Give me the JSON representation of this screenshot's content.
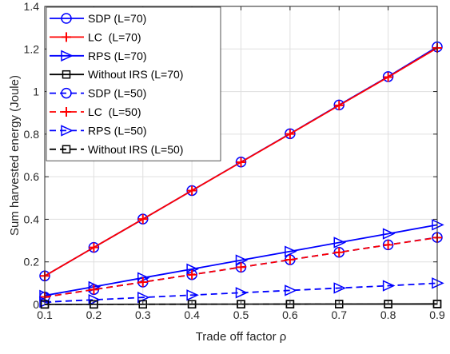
{
  "chart_data": {
    "type": "line",
    "xlabel": "Trade off factor ρ",
    "ylabel": "Sum harvested energy (Joule)",
    "xlim": [
      0.1,
      0.9
    ],
    "ylim": [
      0,
      1.4
    ],
    "xticks": [
      "0.1",
      "0.2",
      "0.3",
      "0.4",
      "0.5",
      "0.6",
      "0.7",
      "0.8",
      "0.9"
    ],
    "yticks": [
      "0",
      "0.2",
      "0.4",
      "0.6",
      "0.8",
      "1",
      "1.2",
      "1.4"
    ],
    "grid": true,
    "legend_position": "top-left",
    "x": [
      0.1,
      0.2,
      0.3,
      0.4,
      0.5,
      0.6,
      0.7,
      0.8,
      0.9
    ],
    "series": [
      {
        "name": "SDP (L=70)",
        "color": "#0000ff",
        "style": "solid",
        "marker": "circle",
        "values": [
          0.134,
          0.268,
          0.401,
          0.535,
          0.669,
          0.802,
          0.937,
          1.07,
          1.21
        ]
      },
      {
        "name": "LC  (L=70)",
        "color": "#ff0000",
        "style": "solid",
        "marker": "plus",
        "values": [
          0.134,
          0.268,
          0.401,
          0.535,
          0.668,
          0.801,
          0.935,
          1.068,
          1.205
        ]
      },
      {
        "name": "RPS (L=70)",
        "color": "#0000ff",
        "style": "solid",
        "marker": "triangle-right",
        "values": [
          0.042,
          0.083,
          0.125,
          0.166,
          0.208,
          0.249,
          0.291,
          0.332,
          0.374
        ]
      },
      {
        "name": "Without IRS (L=70)",
        "color": "#000000",
        "style": "solid",
        "marker": "square",
        "values": [
          0.0003,
          0.0005,
          0.0008,
          0.0011,
          0.0014,
          0.0016,
          0.0019,
          0.0022,
          0.0025
        ]
      },
      {
        "name": "SDP (L=50)",
        "color": "#0000ff",
        "style": "dashed",
        "marker": "circle",
        "values": [
          0.035,
          0.07,
          0.105,
          0.14,
          0.175,
          0.21,
          0.245,
          0.28,
          0.315
        ]
      },
      {
        "name": "LC  (L=50)",
        "color": "#ff0000",
        "style": "dashed",
        "marker": "plus",
        "values": [
          0.035,
          0.07,
          0.105,
          0.14,
          0.175,
          0.21,
          0.245,
          0.28,
          0.314
        ]
      },
      {
        "name": "RPS (L=50)",
        "color": "#0000ff",
        "style": "dashed",
        "marker": "triangle-right",
        "values": [
          0.011,
          0.022,
          0.033,
          0.044,
          0.055,
          0.066,
          0.077,
          0.088,
          0.1
        ]
      },
      {
        "name": "Without IRS (L=50)",
        "color": "#000000",
        "style": "dashed",
        "marker": "square",
        "values": [
          0.0002,
          0.0004,
          0.0006,
          0.0008,
          0.001,
          0.0012,
          0.0014,
          0.0016,
          0.0018
        ]
      }
    ]
  }
}
